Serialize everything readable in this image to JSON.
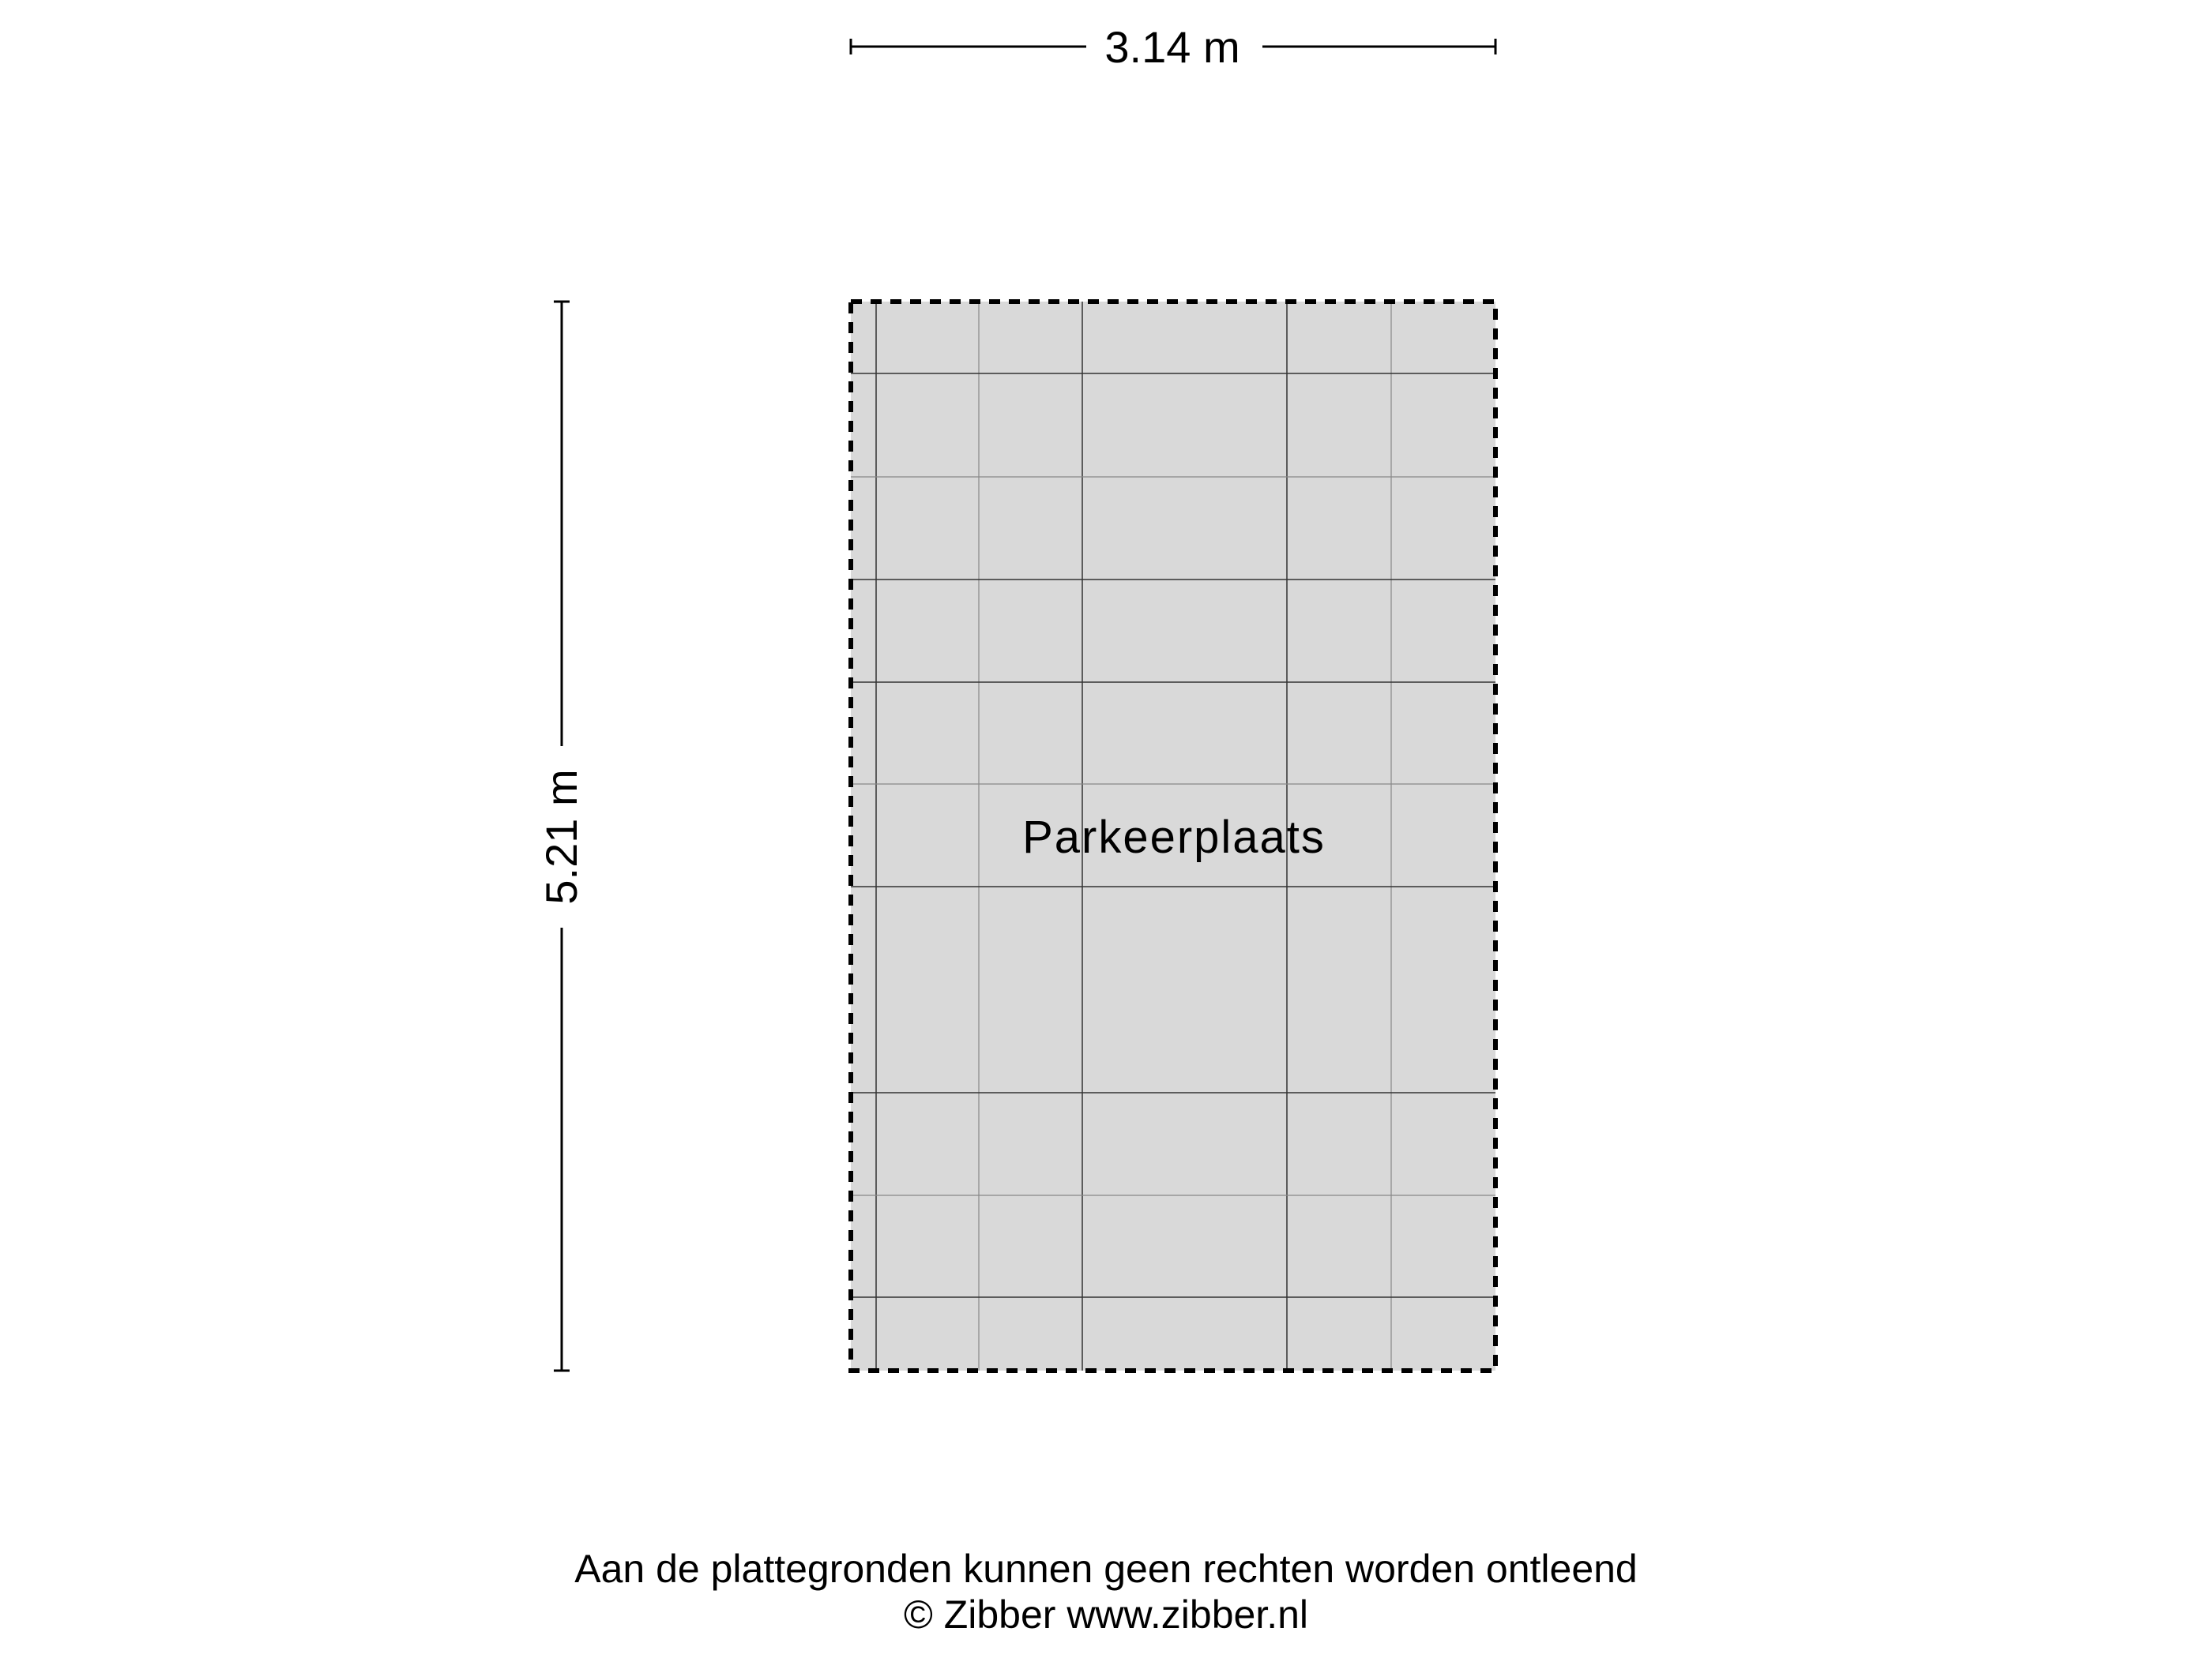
{
  "dimensions": {
    "width_label": "3.14 m",
    "height_label": "5.21 m"
  },
  "room": {
    "name": "Parkeerplaats",
    "fill_color": "#d9d9d9"
  },
  "footer": {
    "disclaimer": "Aan de plattegronden kunnen geen rechten worden ontleend",
    "copyright": "© Zibber www.zibber.nl"
  }
}
